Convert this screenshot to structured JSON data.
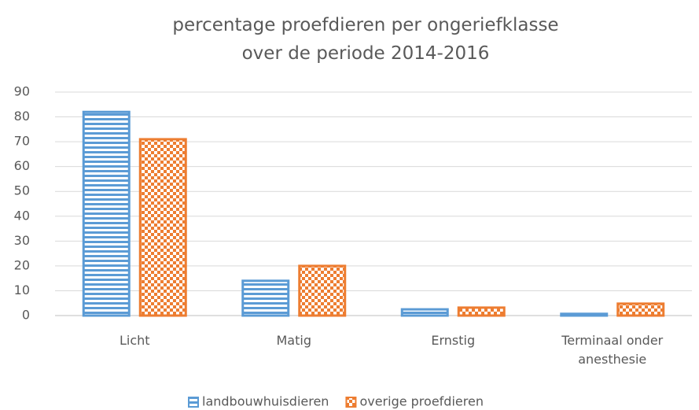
{
  "chart_data": {
    "type": "bar",
    "title": "percentage proefdieren per ongeriefklasse over de periode 2014-2016",
    "categories": [
      "Licht",
      "Matig",
      "Ernstig",
      "Terminaal onder anesthesie"
    ],
    "series": [
      {
        "name": "landbouwhuisdieren",
        "color": "#5b9bd5",
        "pattern": "stripes",
        "values": [
          82,
          14,
          2.5,
          0.7
        ]
      },
      {
        "name": "overige proefdieren",
        "color": "#ed7d31",
        "pattern": "checker",
        "values": [
          71,
          20,
          3.2,
          4.8
        ]
      }
    ],
    "ylim": [
      0,
      90
    ],
    "yticks": [
      0,
      10,
      20,
      30,
      40,
      50,
      60,
      70,
      80,
      90
    ],
    "grid": true,
    "legend": "bottom"
  }
}
